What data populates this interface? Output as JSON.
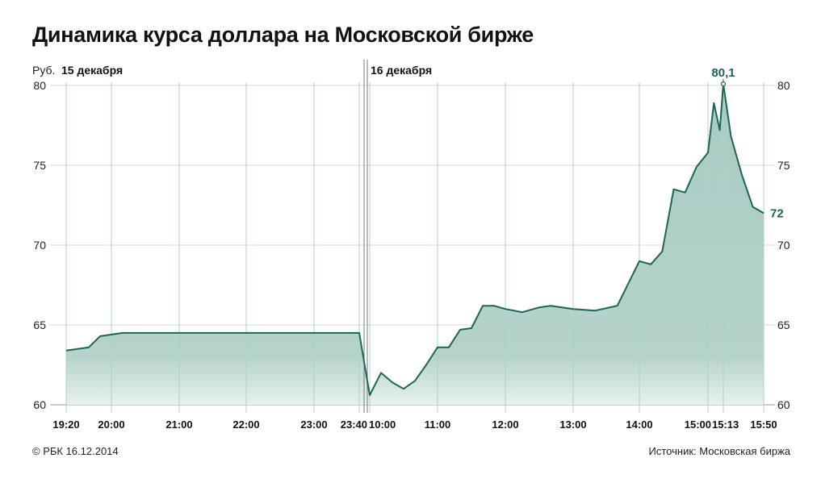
{
  "title": "Динамика курса доллара на Московской бирже",
  "footer": {
    "copyright": "© РБК 16.12.2014",
    "source_label": "Источник:",
    "source_name": "Московская биржа"
  },
  "colors": {
    "line": "#1e6452",
    "fill_top": "#a8cbc2",
    "fill_bottom": "#e8f1ee",
    "grid_h": "#d9d9d9",
    "grid_v": "#a9d3c4",
    "accent_text": "#1e6452"
  },
  "chart_data": {
    "type": "area",
    "unit_label": "Руб.",
    "day_labels": [
      "15 декабря",
      "16 декабря"
    ],
    "ylim": [
      60,
      80
    ],
    "yticks": [
      "80",
      "75",
      "70",
      "65",
      "60"
    ],
    "ytick_values": [
      80,
      75,
      70,
      65,
      60
    ],
    "xticks": [
      "19:20",
      "20:00",
      "21:00",
      "22:00",
      "23:00",
      "23:40",
      "10:00",
      "11:00",
      "12:00",
      "13:00",
      "14:00",
      "15:00",
      "15:13",
      "15:50"
    ],
    "annotations": {
      "peak": "80,1",
      "last": "72"
    },
    "series": [
      {
        "x": [
          "19:20",
          "19:40",
          "19:50",
          "20:00",
          "20:10",
          "21:00",
          "22:00",
          "23:00",
          "23:40",
          "10:00",
          "10:10",
          "10:20",
          "10:30",
          "10:40",
          "10:50",
          "11:00",
          "11:10",
          "11:20",
          "11:30",
          "11:40",
          "11:50",
          "12:00",
          "12:15",
          "12:30",
          "12:40",
          "12:50",
          "13:00",
          "13:20",
          "13:40",
          "14:00",
          "14:10",
          "14:20",
          "14:30",
          "14:40",
          "14:50",
          "15:00",
          "15:05",
          "15:10",
          "15:13",
          "15:20",
          "15:30",
          "15:40",
          "15:50"
        ],
        "values": [
          63.4,
          63.6,
          64.3,
          64.4,
          64.5,
          64.5,
          64.5,
          64.5,
          64.5,
          60.6,
          62.0,
          61.4,
          61.0,
          61.5,
          62.5,
          63.6,
          63.6,
          64.7,
          64.8,
          66.2,
          66.2,
          66.0,
          65.8,
          66.1,
          66.2,
          66.1,
          66.0,
          65.9,
          66.2,
          69.0,
          68.8,
          69.6,
          73.5,
          73.3,
          74.9,
          75.8,
          78.9,
          77.2,
          80.1,
          76.8,
          74.4,
          72.4,
          72.0
        ]
      }
    ]
  }
}
